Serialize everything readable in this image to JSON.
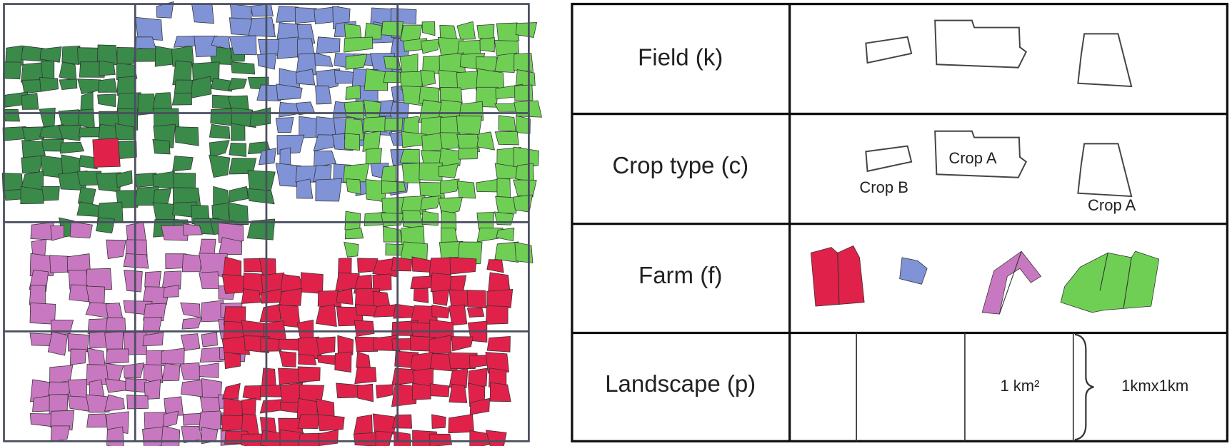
{
  "rows": [
    {
      "label": "Field (k)"
    },
    {
      "label": "Crop type (c)"
    },
    {
      "label": "Farm (f)"
    },
    {
      "label": "Landscape (p)"
    }
  ],
  "crop_labels": [
    "Crop A",
    "Crop B",
    "Crop A"
  ],
  "landscape": {
    "cell_label": "1 km²",
    "scale_label": "1kmx1km"
  }
}
